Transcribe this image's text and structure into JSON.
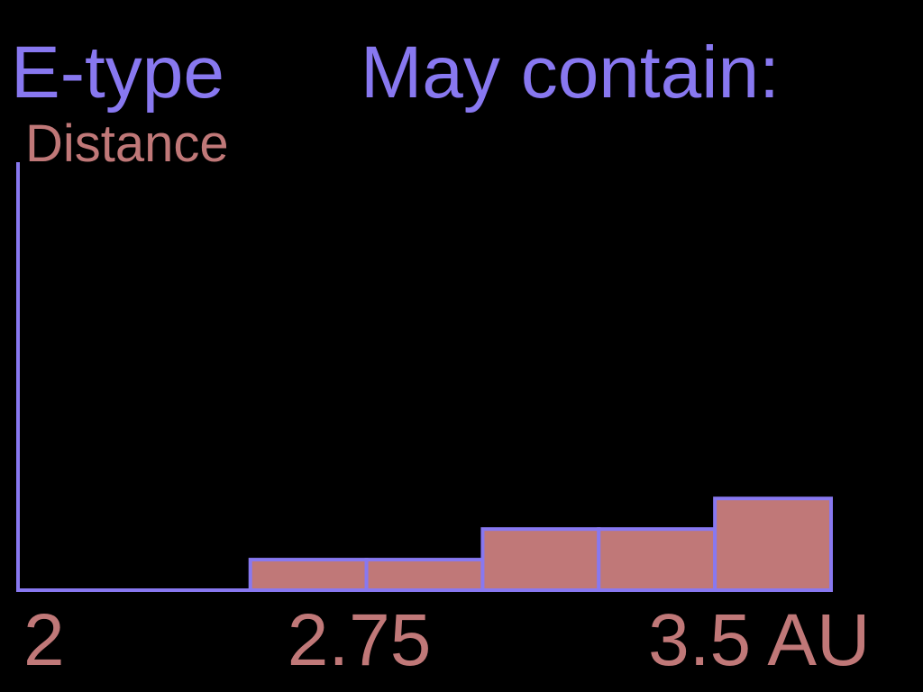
{
  "chart_data": {
    "type": "histogram",
    "title": "E-type",
    "subtitle": "May contain:",
    "y_label": "Distance",
    "bins": [
      2,
      2.25,
      2.5,
      2.75,
      3,
      3.25,
      3.5,
      3.75
    ],
    "values": [
      0,
      0,
      1,
      1,
      2,
      2,
      3
    ],
    "color": "#c07878",
    "edge_color": "#8878f0",
    "text_color": "#c07878",
    "xlim": [
      2,
      3.75
    ],
    "xticks": [
      2,
      2.75,
      {
        "value": 3.5,
        "label": "3.5 AU"
      }
    ],
    "ylim": [
      0,
      14
    ]
  }
}
